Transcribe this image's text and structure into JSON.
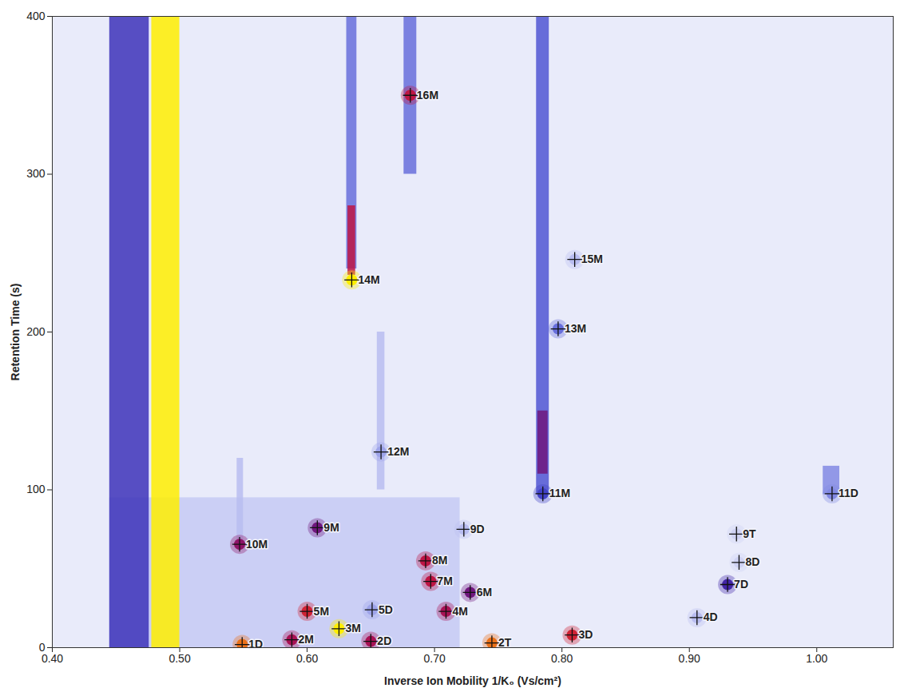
{
  "chart_data": {
    "type": "heatmap",
    "x_label": "Inverse Ion Mobility 1/K₀ (Vs/cm²)",
    "y_label": "Retention Time (s)",
    "xlim": [
      0.4,
      1.06
    ],
    "ylim": [
      0,
      400
    ],
    "xticks": [
      {
        "value": 0.4,
        "label": "0.40"
      },
      {
        "value": 0.5,
        "label": "0.50"
      },
      {
        "value": 0.6,
        "label": "0.60"
      },
      {
        "value": 0.7,
        "label": "0.70"
      },
      {
        "value": 0.8,
        "label": "0.80"
      },
      {
        "value": 0.9,
        "label": "0.90"
      },
      {
        "value": 1.0,
        "label": "1.00"
      }
    ],
    "yticks": [
      0,
      100,
      200,
      300,
      400
    ],
    "grid": false,
    "intensity_range": [
      0,
      1
    ],
    "streaks": [
      {
        "x0": 0.445,
        "x1": 0.72,
        "y0": 0,
        "y1": 95,
        "intensity": 0.12
      },
      {
        "x0": 0.445,
        "x1": 0.476,
        "y0": 0,
        "y1": 400,
        "intensity": 0.45
      },
      {
        "x0": 0.478,
        "x1": 0.5,
        "y0": 0,
        "y1": 400,
        "intensity": 1.0
      },
      {
        "x0": 0.676,
        "x1": 0.686,
        "y0": 300,
        "y1": 400,
        "intensity": 0.3
      },
      {
        "x0": 0.631,
        "x1": 0.639,
        "y0": 240,
        "y1": 400,
        "intensity": 0.3
      },
      {
        "x0": 0.632,
        "x1": 0.638,
        "y0": 236,
        "y1": 280,
        "intensity": 0.75
      },
      {
        "x0": 0.78,
        "x1": 0.79,
        "y0": 97,
        "y1": 400,
        "intensity": 0.35
      },
      {
        "x0": 0.781,
        "x1": 0.789,
        "y0": 110,
        "y1": 150,
        "intensity": 0.6
      },
      {
        "x0": 0.655,
        "x1": 0.661,
        "y0": 100,
        "y1": 200,
        "intensity": 0.15
      },
      {
        "x0": 0.545,
        "x1": 0.55,
        "y0": 65,
        "y1": 120,
        "intensity": 0.15
      },
      {
        "x0": 1.005,
        "x1": 1.018,
        "y0": 97,
        "y1": 115,
        "intensity": 0.25
      }
    ],
    "markers": [
      {
        "label": "16M",
        "x": 0.681,
        "y": 350,
        "intensity": 0.75
      },
      {
        "label": "14M",
        "x": 0.635,
        "y": 233,
        "intensity": 1.0
      },
      {
        "label": "15M",
        "x": 0.81,
        "y": 246,
        "intensity": 0.15
      },
      {
        "label": "13M",
        "x": 0.797,
        "y": 202,
        "intensity": 0.3
      },
      {
        "label": "12M",
        "x": 0.658,
        "y": 124,
        "intensity": 0.2
      },
      {
        "label": "11M",
        "x": 0.785,
        "y": 97.5,
        "intensity": 0.4
      },
      {
        "label": "11D",
        "x": 1.012,
        "y": 97.5,
        "intensity": 0.25
      },
      {
        "label": "10M",
        "x": 0.547,
        "y": 65.5,
        "intensity": 0.65
      },
      {
        "label": "9M",
        "x": 0.608,
        "y": 76,
        "intensity": 0.6
      },
      {
        "label": "9D",
        "x": 0.723,
        "y": 75,
        "intensity": 0.15
      },
      {
        "label": "9T",
        "x": 0.937,
        "y": 72,
        "intensity": 0.1
      },
      {
        "label": "8M",
        "x": 0.693,
        "y": 55,
        "intensity": 0.75
      },
      {
        "label": "8D",
        "x": 0.939,
        "y": 54,
        "intensity": 0.1
      },
      {
        "label": "7M",
        "x": 0.697,
        "y": 42,
        "intensity": 0.75
      },
      {
        "label": "7D",
        "x": 0.93,
        "y": 40,
        "intensity": 0.5
      },
      {
        "label": "6M",
        "x": 0.728,
        "y": 35,
        "intensity": 0.6
      },
      {
        "label": "5M",
        "x": 0.6,
        "y": 23,
        "intensity": 0.8
      },
      {
        "label": "5D",
        "x": 0.651,
        "y": 24,
        "intensity": 0.2
      },
      {
        "label": "4M",
        "x": 0.709,
        "y": 23,
        "intensity": 0.7
      },
      {
        "label": "4D",
        "x": 0.906,
        "y": 19,
        "intensity": 0.15
      },
      {
        "label": "3M",
        "x": 0.625,
        "y": 12,
        "intensity": 1.0
      },
      {
        "label": "3D",
        "x": 0.808,
        "y": 8,
        "intensity": 0.8
      },
      {
        "label": "2M",
        "x": 0.588,
        "y": 5,
        "intensity": 0.7
      },
      {
        "label": "2D",
        "x": 0.65,
        "y": 4,
        "intensity": 0.7
      },
      {
        "label": "2T",
        "x": 0.745,
        "y": 3,
        "intensity": 0.9
      },
      {
        "label": "1D",
        "x": 0.549,
        "y": 2,
        "intensity": 0.9
      }
    ]
  }
}
